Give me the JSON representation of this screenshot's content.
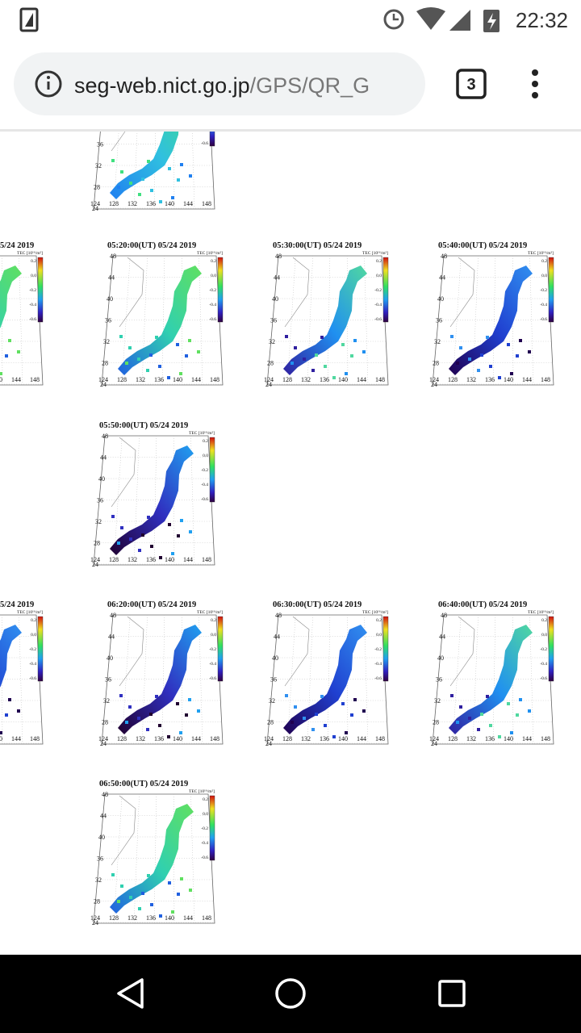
{
  "status_bar": {
    "time": "22:32"
  },
  "browser": {
    "url_host": "seg-web.nict.go.jp",
    "url_path": "/GPS/QR_G",
    "tab_count": "3"
  },
  "map_axes": {
    "lat_labels": [
      48,
      44,
      40,
      36,
      32,
      28,
      24
    ],
    "lon_labels": [
      124,
      128,
      132,
      136,
      140,
      144,
      148
    ],
    "colorbar_label": "TEC [10¹⁶/m²]",
    "colorbar_ticks": [
      "0.2",
      "0.0",
      "-0.2",
      "-0.4",
      "-0.6"
    ]
  },
  "maps": [
    {
      "title": "5/24 2019"
    },
    {
      "title": "05:20:00(UT)  05/24 2019"
    },
    {
      "title": "05:30:00(UT)  05/24 2019"
    },
    {
      "title": "05:40:00(UT)  05/24 2019"
    },
    {
      "title": "05:50:00(UT)  05/24 2019"
    },
    {
      "title": "5/24 2019"
    },
    {
      "title": "06:20:00(UT)  05/24 2019"
    },
    {
      "title": "06:30:00(UT)  05/24 2019"
    },
    {
      "title": "06:40:00(UT)  05/24 2019"
    },
    {
      "title": "06:50:00(UT)  05/24 2019"
    }
  ]
}
